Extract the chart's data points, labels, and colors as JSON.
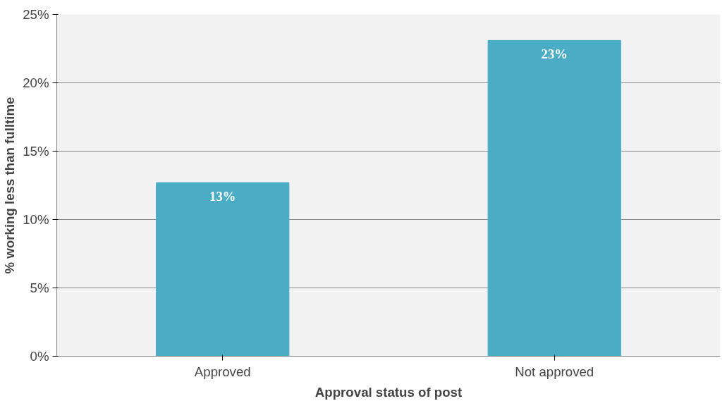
{
  "chart_data": {
    "type": "bar",
    "xlabel": "Approval status of post",
    "ylabel": "% working less than fulltime",
    "categories": [
      "Approved",
      "Not approved"
    ],
    "values": [
      12.7,
      23.1
    ],
    "value_labels": [
      "13%",
      "23%"
    ],
    "color": "#4bacc6",
    "ylim": [
      0,
      25
    ],
    "yticks": [
      {
        "value": 0,
        "label": "0%"
      },
      {
        "value": 5,
        "label": "5%"
      },
      {
        "value": 10,
        "label": "10%"
      },
      {
        "value": 15,
        "label": "15%"
      },
      {
        "value": 20,
        "label": "20%"
      },
      {
        "value": 25,
        "label": "25%"
      }
    ],
    "grid": "y"
  }
}
